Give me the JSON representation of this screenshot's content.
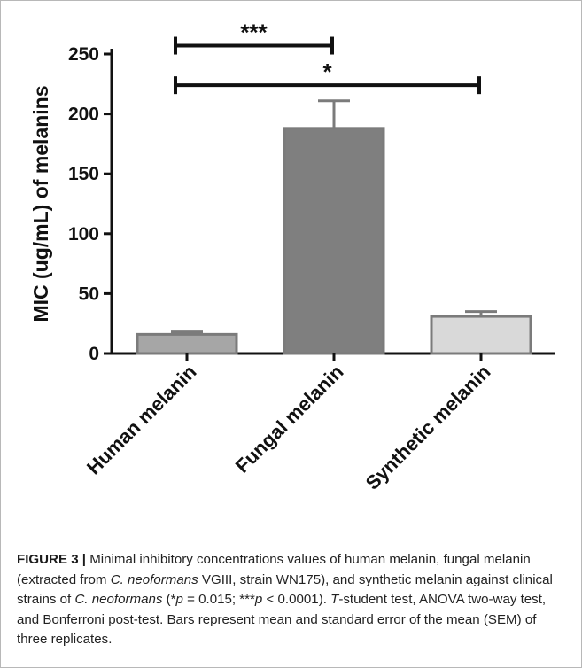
{
  "chart_data": {
    "type": "bar",
    "categories": [
      "Human melanin",
      "Fungal melanin",
      "Synthetic melanin"
    ],
    "values": [
      16,
      188,
      31
    ],
    "errors": [
      2,
      23,
      4
    ],
    "bar_colors": [
      "#a6a6a6",
      "#7f7f7f",
      "#d9d9d9"
    ],
    "bar_edge_color": "#7b7b7b",
    "title": "",
    "xlabel": "",
    "ylabel": "MIC (ug/mL) of melanins",
    "ylim": [
      0,
      250
    ],
    "yticks": [
      0,
      50,
      100,
      150,
      200,
      250
    ],
    "grid": false,
    "legend": "none",
    "significance": [
      {
        "from": 0,
        "to": 1,
        "y": 257,
        "label": "***"
      },
      {
        "from": 0,
        "to": 2,
        "y": 224,
        "label": "*"
      }
    ]
  },
  "caption": {
    "label": "FIGURE 3 |",
    "p1": " Minimal inhibitory concentrations values of human melanin, fungal melanin (extracted from ",
    "species1": "C. neoformans",
    "p2": " VGIII, strain WN175), and synthetic melanin against clinical strains of ",
    "species2": "C. neoformans",
    "p3": " (*",
    "p_sym1": "p",
    "p4": " = 0.015; ***",
    "p_sym2": "p",
    "p5": " < 0.0001). ",
    "t_sym": "T",
    "p6": "-student test, ANOVA two-way test, and Bonferroni post-test. Bars represent mean and standard error of the mean (SEM) of three replicates."
  }
}
